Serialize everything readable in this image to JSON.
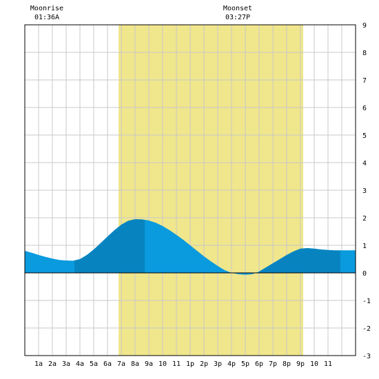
{
  "chart_data": {
    "type": "area",
    "title": "",
    "xlabel": "",
    "ylabel": "",
    "x_range": [
      0,
      24
    ],
    "ylim": [
      -3,
      9
    ],
    "y_ticks": [
      -3,
      -2,
      -1,
      0,
      1,
      2,
      3,
      4,
      5,
      6,
      7,
      8,
      9
    ],
    "x_tick_labels": [
      {
        "x": 1,
        "label": "1a"
      },
      {
        "x": 2,
        "label": "2a"
      },
      {
        "x": 3,
        "label": "3a"
      },
      {
        "x": 4,
        "label": "4a"
      },
      {
        "x": 5,
        "label": "5a"
      },
      {
        "x": 6,
        "label": "6a"
      },
      {
        "x": 7,
        "label": "7a"
      },
      {
        "x": 8,
        "label": "8a"
      },
      {
        "x": 9,
        "label": "9a"
      },
      {
        "x": 10,
        "label": "10"
      },
      {
        "x": 11,
        "label": "11"
      },
      {
        "x": 12,
        "label": "1p"
      },
      {
        "x": 13,
        "label": "2p"
      },
      {
        "x": 14,
        "label": "3p"
      },
      {
        "x": 15,
        "label": "4p"
      },
      {
        "x": 16,
        "label": "5p"
      },
      {
        "x": 17,
        "label": "6p"
      },
      {
        "x": 18,
        "label": "7p"
      },
      {
        "x": 19,
        "label": "8p"
      },
      {
        "x": 20,
        "label": "9p"
      },
      {
        "x": 21,
        "label": "10"
      },
      {
        "x": 22,
        "label": "11"
      }
    ],
    "grid": true,
    "daylight": {
      "start": 6.8,
      "end": 20.2,
      "color": "#f0e68c"
    },
    "moon_events": [
      {
        "name": "Moonrise",
        "time": "01:36A",
        "x": 1.6
      },
      {
        "name": "Moonset",
        "time": "03:27P",
        "x": 15.45
      }
    ],
    "series": [
      {
        "x": [
          0,
          0.5,
          1,
          1.5,
          2,
          2.5,
          3,
          3.5,
          4,
          4.5,
          5,
          5.5,
          6,
          6.5,
          7,
          7.5,
          8,
          8.5,
          9,
          9.5,
          10,
          10.5,
          11,
          11.5,
          12,
          12.5,
          13,
          13.5,
          14,
          14.5,
          15,
          15.5,
          16,
          16.5,
          17,
          17.5,
          18,
          18.5,
          19,
          19.5,
          20,
          20.5,
          21,
          21.5,
          22,
          22.5,
          23,
          23.5,
          24
        ],
        "values": [
          0.8,
          0.73,
          0.65,
          0.58,
          0.52,
          0.47,
          0.45,
          0.44,
          0.5,
          0.65,
          0.85,
          1.08,
          1.32,
          1.55,
          1.75,
          1.89,
          1.95,
          1.94,
          1.9,
          1.82,
          1.7,
          1.55,
          1.38,
          1.2,
          1.0,
          0.8,
          0.6,
          0.42,
          0.25,
          0.1,
          0.0,
          -0.05,
          -0.07,
          -0.05,
          0.05,
          0.2,
          0.35,
          0.5,
          0.65,
          0.78,
          0.88,
          0.9,
          0.88,
          0.85,
          0.83,
          0.82,
          0.82,
          0.82,
          0.82
        ]
      }
    ],
    "bands": [
      {
        "from": 0,
        "to": 3.6,
        "color": "#0a9ade"
      },
      {
        "from": 3.6,
        "to": 8.7,
        "color": "#0784c0"
      },
      {
        "from": 8.7,
        "to": 17.0,
        "color": "#0a9ade"
      },
      {
        "from": 17.0,
        "to": 22.9,
        "color": "#0784c0"
      },
      {
        "from": 22.9,
        "to": 24,
        "color": "#0a9ade"
      }
    ]
  }
}
